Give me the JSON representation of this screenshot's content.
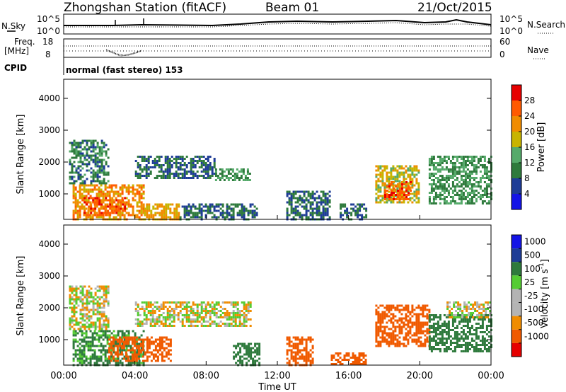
{
  "header": {
    "station": "Zhongshan Station (fitACF)",
    "beam": "Beam 01",
    "date": "21/Oct/2015"
  },
  "noise_panel": {
    "left_label": "N.Sky",
    "right_label": "N.Search",
    "ticks": [
      "10^5",
      "10^0"
    ]
  },
  "freq_panel": {
    "label_line1": "Freq.",
    "label_line2": "[MHz]",
    "left_ticks": [
      "18",
      "8"
    ],
    "right_ticks": [
      "60",
      "0"
    ],
    "right_label": "Nave",
    "cpid_label": "CPID",
    "cpid_text": "normal (fast stereo) 153"
  },
  "colors": {
    "power": [
      "#1414e6",
      "#1e3c96",
      "#2e7a3c",
      "#55aa6a",
      "#c8b400",
      "#f08c00",
      "#ff5a00",
      "#e60000"
    ],
    "velocity": [
      "#e60000",
      "#f05a00",
      "#f08c00",
      "#b4b4b4",
      "#b4b4b4",
      "#55cc33",
      "#2e7a3c",
      "#1e3c96",
      "#1414e6"
    ]
  },
  "chart_data": [
    {
      "type": "heatmap",
      "title": "",
      "xlabel": "Time UT",
      "ylabel": "Slant Range [km]",
      "xlim": [
        "00:00",
        "24:00"
      ],
      "ylim": [
        200,
        4600
      ],
      "x_ticks": [
        "00:00",
        "04:00",
        "08:00",
        "12:00",
        "16:00",
        "20:00",
        "00:00"
      ],
      "y_ticks": [
        1000,
        2000,
        3000,
        4000
      ],
      "colorbar": {
        "label": "Power [dB]",
        "range": [
          0,
          32
        ],
        "ticks": [
          4,
          8,
          12,
          16,
          20,
          24,
          28
        ]
      },
      "regions": [
        {
          "t0": 0.3,
          "t1": 2.5,
          "r0": 1300,
          "r1": 2700,
          "value": 10
        },
        {
          "t0": 0.5,
          "t1": 4.5,
          "r0": 200,
          "r1": 1300,
          "value": 22
        },
        {
          "t0": 1.0,
          "t1": 3.5,
          "r0": 300,
          "r1": 900,
          "value": 26
        },
        {
          "t0": 4.5,
          "t1": 6.5,
          "r0": 200,
          "r1": 700,
          "value": 20
        },
        {
          "t0": 6.5,
          "t1": 10.8,
          "r0": 200,
          "r1": 700,
          "value": 8
        },
        {
          "t0": 4.0,
          "t1": 8.5,
          "r0": 1500,
          "r1": 2200,
          "value": 8
        },
        {
          "t0": 8.5,
          "t1": 10.5,
          "r0": 1400,
          "r1": 1800,
          "value": 12
        },
        {
          "t0": 12.5,
          "t1": 15.0,
          "r0": 200,
          "r1": 1100,
          "value": 8
        },
        {
          "t0": 15.5,
          "t1": 17.0,
          "r0": 200,
          "r1": 700,
          "value": 8
        },
        {
          "t0": 17.5,
          "t1": 20.0,
          "r0": 700,
          "r1": 1900,
          "value": 18
        },
        {
          "t0": 18.0,
          "t1": 19.5,
          "r0": 800,
          "r1": 1400,
          "value": 26
        },
        {
          "t0": 20.5,
          "t1": 24.0,
          "r0": 700,
          "r1": 2200,
          "value": 12
        }
      ]
    },
    {
      "type": "heatmap",
      "title": "",
      "xlabel": "Time UT",
      "ylabel": "Slant Range [km]",
      "xlim": [
        "00:00",
        "24:00"
      ],
      "ylim": [
        200,
        4600
      ],
      "x_ticks": [
        "00:00",
        "04:00",
        "08:00",
        "12:00",
        "16:00",
        "20:00",
        "00:00"
      ],
      "y_ticks": [
        1000,
        2000,
        3000,
        4000
      ],
      "colorbar": {
        "label": "Velocity [m s^-1]",
        "units_text": "Velocity [m s",
        "units_exp": "-1",
        "units_close": "]",
        "tick_labels": [
          "1000",
          "500",
          "100",
          "25",
          "-25",
          "-100",
          "-500",
          "-1000"
        ]
      },
      "regions": [
        {
          "t0": 0.3,
          "t1": 2.5,
          "r0": 1300,
          "r1": 2700,
          "value": 0
        },
        {
          "t0": 0.5,
          "t1": 4.5,
          "r0": 200,
          "r1": 1300,
          "value": 150
        },
        {
          "t0": 2.5,
          "t1": 6.0,
          "r0": 300,
          "r1": 1100,
          "value": -200
        },
        {
          "t0": 4.0,
          "t1": 10.5,
          "r0": 1400,
          "r1": 2200,
          "value": 0
        },
        {
          "t0": 9.5,
          "t1": 11.0,
          "r0": 200,
          "r1": 900,
          "value": 200
        },
        {
          "t0": 12.5,
          "t1": 14.0,
          "r0": 200,
          "r1": 1100,
          "value": -200
        },
        {
          "t0": 15.0,
          "t1": 17.0,
          "r0": 200,
          "r1": 600,
          "value": -300
        },
        {
          "t0": 17.5,
          "t1": 20.5,
          "r0": 800,
          "r1": 2100,
          "value": -300
        },
        {
          "t0": 20.5,
          "t1": 24.0,
          "r0": 600,
          "r1": 1800,
          "value": 200
        },
        {
          "t0": 21.5,
          "t1": 24.0,
          "r0": 1700,
          "r1": 2200,
          "value": 0
        }
      ]
    }
  ]
}
